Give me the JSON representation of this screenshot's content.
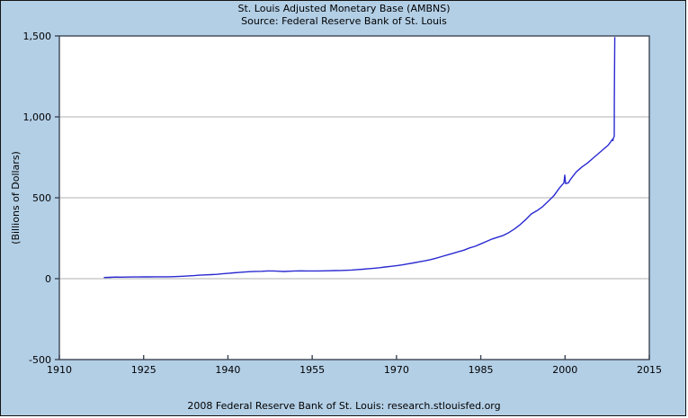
{
  "header": {
    "title": "St. Louis Adjusted Monetary Base (AMBNS)",
    "subtitle": "Source: Federal Reserve Bank of St. Louis"
  },
  "footer": {
    "text": "2008 Federal Reserve Bank of St. Louis: research.stlouisfed.org"
  },
  "colors": {
    "background": "#b3cfe6",
    "plot_background": "#ffffff",
    "gridline": "#b0b0b0",
    "axis": "#3c4655",
    "line": "#2a2ad2",
    "text": "#000000",
    "frame_border": "#141414"
  },
  "chart_data": {
    "type": "line",
    "title": "St. Louis Adjusted Monetary Base (AMBNS)",
    "subtitle": "Source: Federal Reserve Bank of St. Louis",
    "xlabel": "",
    "ylabel": "(Billions of Dollars)",
    "xlim": [
      1910,
      2015
    ],
    "ylim": [
      -500,
      1500
    ],
    "grid": true,
    "legend": false,
    "x_ticks": [
      {
        "value": 1910,
        "label": "1910"
      },
      {
        "value": 1925,
        "label": "1925"
      },
      {
        "value": 1940,
        "label": "1940"
      },
      {
        "value": 1955,
        "label": "1955"
      },
      {
        "value": 1970,
        "label": "1970"
      },
      {
        "value": 1985,
        "label": "1985"
      },
      {
        "value": 2000,
        "label": "2000"
      },
      {
        "value": 2015,
        "label": "2015"
      }
    ],
    "y_ticks": [
      {
        "value": 1500,
        "label": "1,500"
      },
      {
        "value": 1000,
        "label": "1,000"
      },
      {
        "value": 500,
        "label": "500"
      },
      {
        "value": 0,
        "label": "0"
      },
      {
        "value": -500,
        "label": "-500"
      }
    ],
    "series": [
      {
        "name": "St. Louis Adjusted Monetary Base",
        "color": "#2a2ad2",
        "points": [
          [
            1918,
            7
          ],
          [
            1919,
            8.5
          ],
          [
            1920,
            10
          ],
          [
            1921,
            9.5
          ],
          [
            1922,
            10
          ],
          [
            1923,
            10.5
          ],
          [
            1924,
            10.8
          ],
          [
            1925,
            11
          ],
          [
            1926,
            11.2
          ],
          [
            1927,
            11.4
          ],
          [
            1928,
            11.4
          ],
          [
            1929,
            11.5
          ],
          [
            1930,
            12
          ],
          [
            1931,
            13.5
          ],
          [
            1932,
            15
          ],
          [
            1933,
            17
          ],
          [
            1934,
            19
          ],
          [
            1935,
            21.5
          ],
          [
            1936,
            23.5
          ],
          [
            1937,
            25
          ],
          [
            1938,
            26.5
          ],
          [
            1939,
            30
          ],
          [
            1940,
            33
          ],
          [
            1941,
            36
          ],
          [
            1942,
            38.5
          ],
          [
            1943,
            41
          ],
          [
            1944,
            43.5
          ],
          [
            1945,
            45
          ],
          [
            1946,
            45.5
          ],
          [
            1947,
            47.5
          ],
          [
            1948,
            48
          ],
          [
            1948.6,
            46.5
          ],
          [
            1949.2,
            45.5
          ],
          [
            1950,
            44.5
          ],
          [
            1951,
            46
          ],
          [
            1952,
            47.5
          ],
          [
            1953,
            48.5
          ],
          [
            1954,
            47.5
          ],
          [
            1955,
            47.5
          ],
          [
            1956,
            48
          ],
          [
            1957,
            48.5
          ],
          [
            1958,
            49
          ],
          [
            1959,
            50
          ],
          [
            1960,
            50.5
          ],
          [
            1961,
            51.5
          ],
          [
            1962,
            53.5
          ],
          [
            1963,
            56
          ],
          [
            1964,
            58.5
          ],
          [
            1965,
            61.5
          ],
          [
            1966,
            64.5
          ],
          [
            1967,
            68
          ],
          [
            1968,
            72
          ],
          [
            1969,
            76
          ],
          [
            1970,
            80
          ],
          [
            1971,
            85
          ],
          [
            1972,
            91
          ],
          [
            1973,
            97
          ],
          [
            1974,
            104
          ],
          [
            1975,
            110
          ],
          [
            1976,
            117
          ],
          [
            1977,
            126
          ],
          [
            1978,
            136
          ],
          [
            1979,
            146
          ],
          [
            1980,
            156
          ],
          [
            1981,
            166
          ],
          [
            1982,
            176
          ],
          [
            1983,
            190
          ],
          [
            1984,
            200
          ],
          [
            1985,
            215
          ],
          [
            1986,
            230
          ],
          [
            1987,
            245
          ],
          [
            1988,
            256
          ],
          [
            1989,
            267
          ],
          [
            1990,
            285
          ],
          [
            1991,
            307
          ],
          [
            1992,
            334
          ],
          [
            1993,
            365
          ],
          [
            1994,
            400
          ],
          [
            1995,
            420
          ],
          [
            1996,
            445
          ],
          [
            1997,
            478
          ],
          [
            1998,
            512
          ],
          [
            1999,
            560
          ],
          [
            1999.8,
            592
          ],
          [
            1999.95,
            640
          ],
          [
            2000.1,
            588
          ],
          [
            2000.6,
            592
          ],
          [
            2001,
            615
          ],
          [
            2001.5,
            638
          ],
          [
            2002,
            660
          ],
          [
            2003,
            690
          ],
          [
            2004,
            715
          ],
          [
            2005,
            745
          ],
          [
            2006,
            775
          ],
          [
            2007,
            805
          ],
          [
            2007.6,
            822
          ],
          [
            2008.1,
            845
          ],
          [
            2008.4,
            860
          ],
          [
            2008.5,
            853
          ],
          [
            2008.6,
            868
          ],
          [
            2008.7,
            875
          ],
          [
            2008.75,
            880
          ],
          [
            2008.78,
            1100
          ],
          [
            2008.82,
            1350
          ],
          [
            2008.85,
            1490
          ]
        ]
      }
    ]
  }
}
